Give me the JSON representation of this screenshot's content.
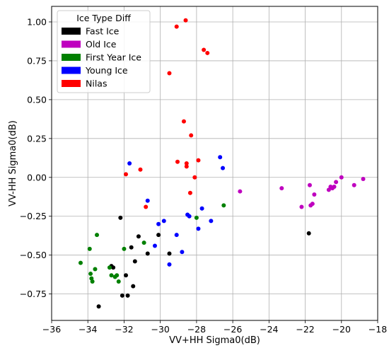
{
  "chart_data": {
    "type": "scatter",
    "title": "",
    "xlabel": "VV+HH Sigma0(dB)",
    "ylabel": "VV-HH Sigma0(dB)",
    "xlim": [
      -36,
      -18
    ],
    "ylim": [
      -0.92,
      1.1
    ],
    "xticks": [
      -36,
      -34,
      -32,
      -30,
      -28,
      -26,
      -24,
      -22,
      -20,
      -18
    ],
    "yticks": [
      -0.75,
      -0.5,
      -0.25,
      0.0,
      0.25,
      0.5,
      0.75,
      1.0
    ],
    "xtick_labels": [
      "−36",
      "−34",
      "−32",
      "−30",
      "−28",
      "−26",
      "−24",
      "−22",
      "−20",
      "−18"
    ],
    "ytick_labels": [
      "−0.75",
      "−0.50",
      "−0.25",
      "0.00",
      "0.25",
      "0.50",
      "0.75",
      "1.00"
    ],
    "grid": true,
    "legend": {
      "title": "Ice Type Diff",
      "placement": "top-left"
    },
    "series": [
      {
        "name": "Fast Ice",
        "color": "#000000",
        "points": [
          [
            -33.4,
            -0.83
          ],
          [
            -32.7,
            -0.57
          ],
          [
            -32.6,
            -0.58
          ],
          [
            -32.2,
            -0.26
          ],
          [
            -32.1,
            -0.76
          ],
          [
            -31.9,
            -0.63
          ],
          [
            -31.8,
            -0.76
          ],
          [
            -31.6,
            -0.45
          ],
          [
            -31.5,
            -0.7
          ],
          [
            -31.4,
            -0.54
          ],
          [
            -31.2,
            -0.38
          ],
          [
            -30.7,
            -0.49
          ],
          [
            -30.1,
            -0.37
          ],
          [
            -29.5,
            -0.49
          ],
          [
            -21.8,
            -0.36
          ]
        ]
      },
      {
        "name": "Old Ice",
        "color": "#bf00bf",
        "points": [
          [
            -25.6,
            -0.09
          ],
          [
            -23.3,
            -0.07
          ],
          [
            -22.2,
            -0.19
          ],
          [
            -21.75,
            -0.05
          ],
          [
            -21.7,
            -0.18
          ],
          [
            -21.6,
            -0.17
          ],
          [
            -21.5,
            -0.11
          ],
          [
            -20.7,
            -0.08
          ],
          [
            -20.6,
            -0.06
          ],
          [
            -20.5,
            -0.07
          ],
          [
            -20.4,
            -0.06
          ],
          [
            -20.3,
            -0.03
          ],
          [
            -20.0,
            0.0
          ],
          [
            -19.3,
            -0.05
          ],
          [
            -18.8,
            -0.01
          ]
        ]
      },
      {
        "name": "First Year Ice",
        "color": "#008000",
        "points": [
          [
            -34.4,
            -0.55
          ],
          [
            -33.9,
            -0.46
          ],
          [
            -33.85,
            -0.62
          ],
          [
            -33.8,
            -0.65
          ],
          [
            -33.75,
            -0.67
          ],
          [
            -33.6,
            -0.59
          ],
          [
            -33.5,
            -0.37
          ],
          [
            -32.8,
            -0.58
          ],
          [
            -32.7,
            -0.63
          ],
          [
            -32.5,
            -0.64
          ],
          [
            -32.4,
            -0.63
          ],
          [
            -32.3,
            -0.67
          ],
          [
            -32.0,
            -0.46
          ],
          [
            -30.9,
            -0.42
          ],
          [
            -28.0,
            -0.26
          ],
          [
            -26.5,
            -0.18
          ]
        ]
      },
      {
        "name": "Young Ice",
        "color": "#0000ff",
        "points": [
          [
            -31.7,
            0.09
          ],
          [
            -30.7,
            -0.15
          ],
          [
            -30.3,
            -0.44
          ],
          [
            -30.1,
            -0.3
          ],
          [
            -29.8,
            -0.28
          ],
          [
            -29.5,
            -0.56
          ],
          [
            -29.1,
            -0.37
          ],
          [
            -28.8,
            -0.48
          ],
          [
            -28.5,
            -0.24
          ],
          [
            -28.4,
            -0.25
          ],
          [
            -27.9,
            -0.33
          ],
          [
            -27.7,
            -0.2
          ],
          [
            -27.2,
            -0.28
          ],
          [
            -26.7,
            0.13
          ],
          [
            -26.55,
            0.06
          ]
        ]
      },
      {
        "name": "Nilas",
        "color": "#ff0000",
        "points": [
          [
            -31.9,
            0.02
          ],
          [
            -31.1,
            0.05
          ],
          [
            -30.8,
            -0.19
          ],
          [
            -29.5,
            0.67
          ],
          [
            -29.1,
            0.97
          ],
          [
            -29.05,
            0.1
          ],
          [
            -28.7,
            0.36
          ],
          [
            -28.6,
            1.01
          ],
          [
            -28.55,
            0.07
          ],
          [
            -28.55,
            0.09
          ],
          [
            -28.35,
            -0.1
          ],
          [
            -28.3,
            0.27
          ],
          [
            -28.1,
            0.0
          ],
          [
            -27.9,
            0.11
          ],
          [
            -27.6,
            0.82
          ],
          [
            -27.4,
            0.8
          ]
        ]
      }
    ]
  }
}
